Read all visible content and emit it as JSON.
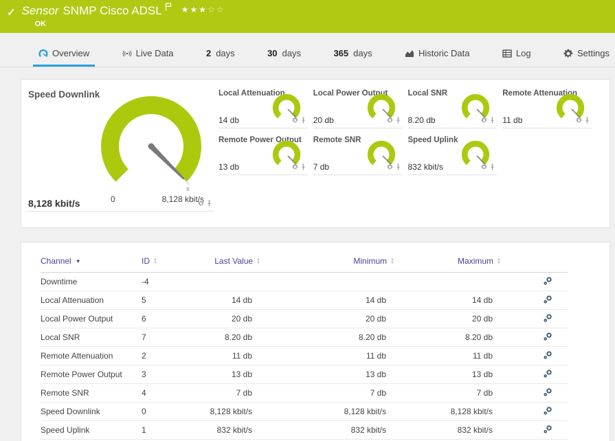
{
  "colors": {
    "brand_green": "#b1c913",
    "gauge_green": "#adc90e",
    "active_tab_blue": "#2b9fd8",
    "table_header_purple": "#4c4390"
  },
  "header": {
    "kind_label": "Sensor",
    "title": "SNMP Cisco ADSL",
    "status": "OK",
    "rating_filled": 3,
    "rating_total": 5
  },
  "tabs": [
    {
      "label": "Overview",
      "icon": "gauge",
      "active": true
    },
    {
      "label": "Live Data",
      "icon": "live"
    },
    {
      "number": "2",
      "label": "days"
    },
    {
      "number": "30",
      "label": "days"
    },
    {
      "number": "365",
      "label": "days"
    },
    {
      "label": "Historic Data",
      "icon": "historic"
    },
    {
      "label": "Log",
      "icon": "log"
    },
    {
      "label": "Settings",
      "icon": "gear"
    }
  ],
  "overview": {
    "main_gauge": {
      "title": "Speed Downlink",
      "current_value": "8,128 kbit/s",
      "scale_min": "0",
      "scale_max": "8,128 kbit/s",
      "mean_marker": "x̄"
    },
    "small_gauges": [
      {
        "title": "Local Attenuation",
        "value": "14 db"
      },
      {
        "title": "Local Power Output",
        "value": "20 db"
      },
      {
        "title": "Local SNR",
        "value": "8.20 db"
      },
      {
        "title": "Remote Attenuation",
        "value": "11 db"
      },
      {
        "title": "Remote Power Output",
        "value": "13 db"
      },
      {
        "title": "Remote SNR",
        "value": "7 db"
      },
      {
        "title": "Speed Uplink",
        "value": "832 kbit/s"
      }
    ]
  },
  "channels_table": {
    "columns": [
      "Channel",
      "ID",
      "Last Value",
      "Minimum",
      "Maximum"
    ],
    "sorted_column": "Channel",
    "rows": [
      {
        "channel": "Downtime",
        "id": "-4",
        "last_value": "",
        "minimum": "",
        "maximum": ""
      },
      {
        "channel": "Local Attenuation",
        "id": "5",
        "last_value": "14 db",
        "minimum": "14 db",
        "maximum": "14 db"
      },
      {
        "channel": "Local Power Output",
        "id": "6",
        "last_value": "20 db",
        "minimum": "20 db",
        "maximum": "20 db"
      },
      {
        "channel": "Local SNR",
        "id": "7",
        "last_value": "8.20 db",
        "minimum": "8.20 db",
        "maximum": "8.20 db"
      },
      {
        "channel": "Remote Attenuation",
        "id": "2",
        "last_value": "11 db",
        "minimum": "11 db",
        "maximum": "11 db"
      },
      {
        "channel": "Remote Power Output",
        "id": "3",
        "last_value": "13 db",
        "minimum": "13 db",
        "maximum": "13 db"
      },
      {
        "channel": "Remote SNR",
        "id": "4",
        "last_value": "7 db",
        "minimum": "7 db",
        "maximum": "7 db"
      },
      {
        "channel": "Speed Downlink",
        "id": "0",
        "last_value": "8,128 kbit/s",
        "minimum": "8,128 kbit/s",
        "maximum": "8,128 kbit/s"
      },
      {
        "channel": "Speed Uplink",
        "id": "1",
        "last_value": "832 kbit/s",
        "minimum": "832 kbit/s",
        "maximum": "832 kbit/s"
      }
    ]
  }
}
